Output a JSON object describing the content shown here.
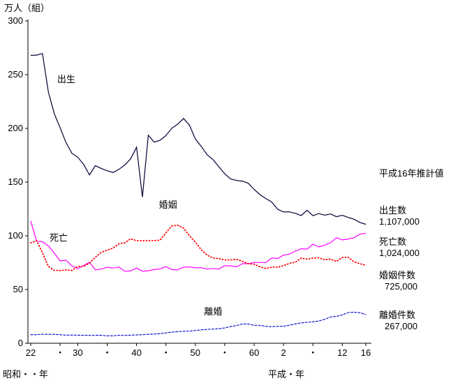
{
  "chart_data": {
    "type": "line",
    "ylabel": "万人（組）",
    "era_label_left": "昭和・・年",
    "era_label_right": "平成・年",
    "annotation_title": "平成16年推計値",
    "annotations": [
      {
        "label": "出生数",
        "value": "1,107,000"
      },
      {
        "label": "死亡数",
        "value": "1,024,000"
      },
      {
        "label": "婚姻件数",
        "value": "725,000"
      },
      {
        "label": "離婚件数",
        "value": "267,000"
      }
    ],
    "x_start_year": 1947,
    "x_end_year": 2004,
    "ylim": [
      0,
      300
    ],
    "y_ticks": [
      0,
      50,
      100,
      150,
      200,
      250,
      300
    ],
    "grid": false,
    "legend_position": "in-plot-labels",
    "x_ticks": [
      {
        "year": 1947,
        "label": "22"
      },
      {
        "year": 1952,
        "label": "・"
      },
      {
        "year": 1955,
        "label": "30"
      },
      {
        "year": 1960,
        "label": "・"
      },
      {
        "year": 1965,
        "label": "40"
      },
      {
        "year": 1970,
        "label": "・"
      },
      {
        "year": 1975,
        "label": "50"
      },
      {
        "year": 1980,
        "label": "・"
      },
      {
        "year": 1985,
        "label": "60"
      },
      {
        "year": 1990,
        "label": "2"
      },
      {
        "year": 1995,
        "label": "・"
      },
      {
        "year": 2000,
        "label": "12"
      },
      {
        "year": 2004,
        "label": "16"
      }
    ],
    "series": [
      {
        "id": "births",
        "name": "出生",
        "color": "#000033",
        "style": "solid",
        "label_year": 1951.5,
        "label_value": 243,
        "values": [
          267.9,
          268.2,
          269.7,
          233.8,
          213.8,
          200.5,
          186.8,
          176.9,
          173.1,
          166.5,
          156.7,
          165.3,
          162.6,
          160.6,
          158.9,
          161.8,
          165.9,
          171.7,
          182.4,
          136.1,
          193.6,
          187.2,
          188.9,
          193.4,
          200.1,
          203.9,
          209.2,
          202.9,
          190.1,
          183.3,
          175.5,
          170.9,
          164.3,
          157.7,
          152.9,
          151.5,
          150.9,
          148.9,
          143.2,
          138.3,
          134.7,
          131.4,
          124.7,
          122.2,
          122.3,
          120.9,
          118.8,
          123.8,
          118.7,
          120.7,
          119.2,
          120.3,
          117.8,
          119.1,
          117.1,
          115.4,
          112.4,
          110.7
        ]
      },
      {
        "id": "deaths",
        "name": "死亡",
        "color": "#ff00ff",
        "style": "solid",
        "label_year": 1950.2,
        "label_value": 95,
        "values": [
          113.8,
          95.0,
          94.5,
          90.5,
          83.9,
          76.6,
          77.3,
          72.1,
          69.4,
          72.4,
          75.3,
          68.4,
          69.0,
          70.7,
          70.0,
          71.0,
          67.1,
          67.3,
          70.0,
          67.0,
          67.5,
          68.6,
          69.3,
          71.3,
          68.5,
          68.4,
          70.9,
          71.0,
          70.2,
          70.3,
          69.0,
          69.6,
          69.0,
          72.3,
          72.0,
          71.1,
          74.0,
          74.0,
          75.2,
          75.1,
          75.1,
          79.3,
          78.9,
          82.0,
          83.0,
          85.7,
          87.9,
          87.6,
          92.2,
          89.6,
          91.3,
          93.6,
          98.2,
          96.2,
          97.0,
          98.2,
          101.5,
          102.4
        ]
      },
      {
        "id": "marriages",
        "name": "婚姻",
        "color": "#ff0000",
        "style": "dotted",
        "label_year": 1968.8,
        "label_value": 126,
        "values": [
          93.4,
          95.4,
          84.2,
          71.5,
          67.8,
          67.7,
          68.3,
          67.7,
          71.5,
          71.5,
          74.7,
          80.1,
          84.7,
          86.6,
          88.6,
          92.5,
          93.5,
          97.2,
          95.4,
          95.4,
          95.6,
          95.5,
          96.0,
          102.9,
          109.1,
          109.9,
          107.2,
          100.0,
          94.2,
          87.1,
          82.1,
          79.3,
          78.8,
          77.5,
          77.6,
          78.1,
          76.3,
          74.0,
          73.6,
          71.1,
          69.6,
          70.8,
          70.8,
          72.2,
          74.3,
          75.4,
          79.3,
          78.3,
          79.2,
          79.6,
          77.6,
          78.4,
          76.2,
          79.8,
          80.0,
          75.7,
          74.0,
          72.5
        ]
      },
      {
        "id": "divorces",
        "name": "離婚",
        "color": "#0000cc",
        "style": "dashed",
        "label_year": 1976.5,
        "label_value": 26.5,
        "values": [
          7.9,
          7.9,
          8.4,
          8.3,
          8.3,
          7.9,
          7.5,
          7.6,
          7.5,
          7.4,
          7.3,
          7.4,
          7.4,
          6.9,
          6.9,
          7.4,
          7.3,
          7.5,
          7.7,
          7.9,
          8.3,
          8.5,
          8.9,
          9.6,
          10.3,
          10.8,
          11.1,
          11.3,
          11.9,
          12.5,
          12.9,
          13.2,
          13.5,
          14.2,
          15.5,
          16.4,
          17.9,
          17.9,
          16.7,
          16.6,
          15.8,
          15.4,
          15.8,
          15.8,
          16.8,
          17.9,
          18.9,
          19.5,
          19.9,
          20.7,
          22.2,
          24.4,
          25.0,
          26.4,
          28.6,
          28.9,
          28.4,
          26.7
        ]
      }
    ]
  }
}
